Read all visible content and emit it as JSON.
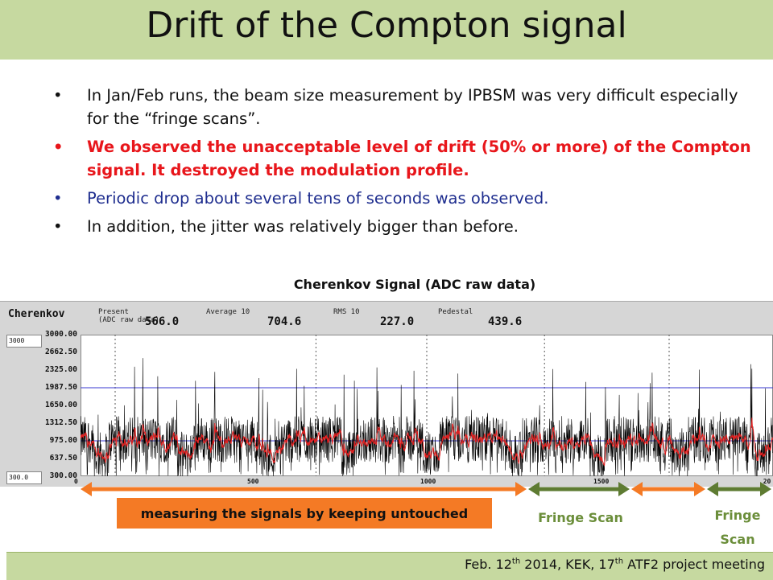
{
  "slide": {
    "title": "Drift of the Compton signal",
    "bullets": [
      {
        "text": "In Jan/Feb runs, the beam size measurement by IPBSM was very difficult especially for the “fringe scans”.",
        "color": "#111111"
      },
      {
        "text": "We observed the unacceptable level of drift (50% or more) of the Compton signal. It destroyed the modulation profile.",
        "color": "#e8161b"
      },
      {
        "text": "Periodic drop about several tens of seconds was observed.",
        "color": "#1f2e8f"
      },
      {
        "text": "In addition, the jitter was relatively bigger than before.",
        "color": "#111111"
      }
    ],
    "bullet_glyph": "•",
    "chart_title": "Cherenkov Signal (ADC raw data)",
    "footer": {
      "pre": "Feb. 12",
      "sup1": "th",
      "mid": " 2014, KEK, 17",
      "sup2": "th",
      "post": " ATF2 project meeting"
    }
  },
  "monitor": {
    "name": "Cherenkov",
    "present_label": "Present",
    "present_sublabel": "(ADC raw data)",
    "present_value": "566.0",
    "average_label": "Average 10",
    "average_value": "704.6",
    "rms_label": "RMS 10",
    "rms_value": "227.0",
    "pedestal_label": "Pedestal",
    "pedestal_value": "439.6",
    "ymax_input": "3000",
    "ymin_input": "300.0"
  },
  "annotations": {
    "measuring": "measuring the signals by keeping untouched",
    "fringe1": "Fringe Scan",
    "fringe2_line1": "Fringe",
    "fringe2_line2": "Scan"
  },
  "colors": {
    "orange": "#f47a25",
    "green": "#5e7b32",
    "title_bg": "#c6d9a0"
  },
  "chart_data": {
    "type": "line",
    "title": "Cherenkov Signal (ADC raw data)",
    "y_ticks": [
      "3000.00",
      "2662.50",
      "2325.00",
      "1987.50",
      "1650.00",
      "1312.50",
      "975.00",
      "637.50",
      "300.00"
    ],
    "x_ticks": [
      "0",
      "500",
      "1000",
      "1500",
      "20"
    ],
    "ylim": [
      300,
      3000
    ],
    "xlim": [
      0,
      2000
    ],
    "reference_lines": [
      1987.5,
      975.0
    ],
    "series": [
      {
        "color": "#000000",
        "approx_baseline": 975,
        "approx_range": [
          300,
          2900
        ]
      },
      {
        "color": "#e02020",
        "approx_baseline": 1000
      }
    ],
    "vertical_markers_x": [
      100,
      680,
      1000,
      1340,
      1700
    ]
  }
}
